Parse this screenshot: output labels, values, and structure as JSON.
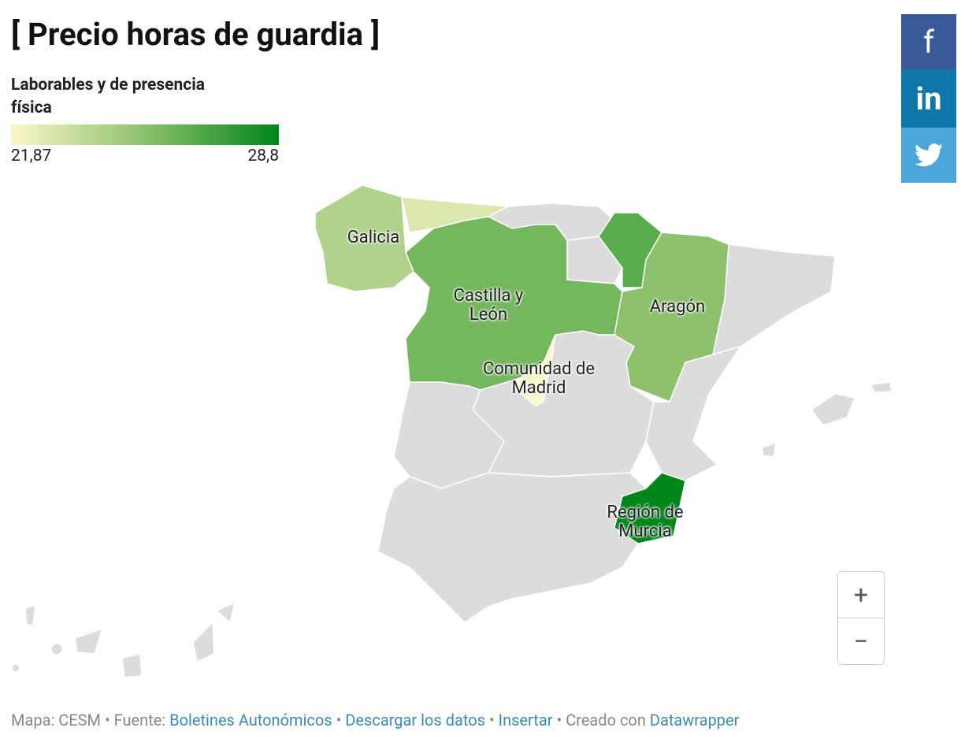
{
  "header": {
    "title": "[ Precio horas de guardia ]"
  },
  "legend": {
    "title": "Laborables y de presencia física",
    "min": {
      "value": 21.87,
      "label": "21,87"
    },
    "max": {
      "value": 28.8,
      "label": "28,8"
    },
    "colors": [
      "#fbf8cb",
      "#8cc06c",
      "#00861a"
    ]
  },
  "regions": [
    {
      "label": "Galicia",
      "value": 24.2
    },
    {
      "label": null,
      "value": 22.9
    },
    {
      "label": "Castilla y León",
      "value": 25.9
    },
    {
      "label": null,
      "value": 26.6
    },
    {
      "label": "Aragón",
      "value": 25.3
    },
    {
      "label": "Comunidad de Madrid",
      "value": 21.87
    },
    {
      "label": "Región de Murcia",
      "value": 28.8
    }
  ],
  "zoom": {
    "in": "+",
    "out": "−"
  },
  "social": {
    "facebook": "f",
    "linkedin": "in"
  },
  "footer": {
    "map": "Mapa: CESM",
    "separator": "•",
    "source_label": "Fuente:",
    "source": "Boletines Autonómicos",
    "download": "Descargar los datos",
    "embed": "Insertar",
    "made_with": "Creado con",
    "tool": "Datawrapper"
  }
}
